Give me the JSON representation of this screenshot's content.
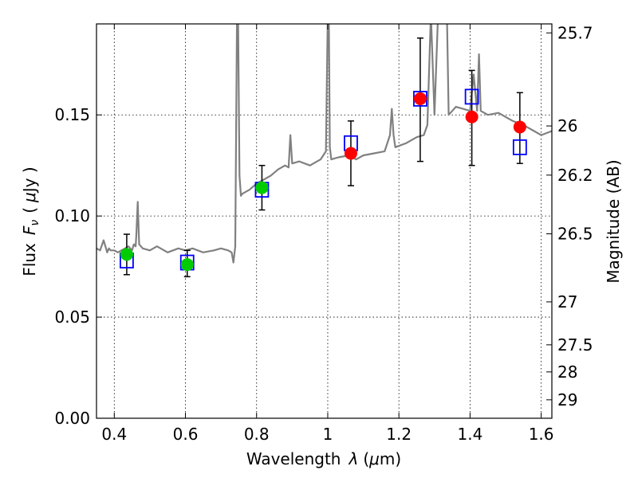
{
  "chart_data": {
    "type": "scatter",
    "xlabel_prefix": "Wavelength",
    "xlabel_symbol": "λ",
    "xlabel_unit_open": "(",
    "xlabel_unit_mu": "μ",
    "xlabel_unit_rest": "m)",
    "ylabel_prefix": "Flux",
    "ylabel_symbol": "F",
    "ylabel_subscript": "ν",
    "ylabel_unit_open": "(",
    "ylabel_unit_mu": "μ",
    "ylabel_unit_rest": "Jy )",
    "y2label": "Magnitude (AB)",
    "xlim": [
      0.35,
      1.63
    ],
    "ylim": [
      0.0,
      0.195
    ],
    "grid": true,
    "x_ticks": [
      {
        "value": 0.4,
        "label": "0.4"
      },
      {
        "value": 0.6,
        "label": "0.6"
      },
      {
        "value": 0.8,
        "label": "0.8"
      },
      {
        "value": 1.0,
        "label": "1"
      },
      {
        "value": 1.2,
        "label": "1.2"
      },
      {
        "value": 1.4,
        "label": "1.4"
      },
      {
        "value": 1.6,
        "label": "1.6"
      }
    ],
    "y_ticks": [
      {
        "value": 0.0,
        "label": "0.00"
      },
      {
        "value": 0.05,
        "label": "0.05"
      },
      {
        "value": 0.1,
        "label": "0.10"
      },
      {
        "value": 0.15,
        "label": "0.15"
      }
    ],
    "y2_ticks": [
      {
        "value": 25.7,
        "label": "25.7"
      },
      {
        "value": 26.0,
        "label": "26"
      },
      {
        "value": 26.2,
        "label": "26.2"
      },
      {
        "value": 26.5,
        "label": "26.5"
      },
      {
        "value": 27.0,
        "label": "27"
      },
      {
        "value": 27.5,
        "label": "27.5"
      },
      {
        "value": 28.0,
        "label": "28"
      },
      {
        "value": 29.0,
        "label": "29"
      }
    ],
    "series": [
      {
        "kind": "line",
        "color": "#808080",
        "x": [
          0.35,
          0.36,
          0.37,
          0.375,
          0.38,
          0.385,
          0.39,
          0.4,
          0.41,
          0.42,
          0.43,
          0.44,
          0.45,
          0.455,
          0.46,
          0.462,
          0.466,
          0.47,
          0.48,
          0.5,
          0.52,
          0.55,
          0.58,
          0.6,
          0.62,
          0.65,
          0.68,
          0.7,
          0.72,
          0.73,
          0.735,
          0.74,
          0.745,
          0.748,
          0.752,
          0.756,
          0.76,
          0.78,
          0.8,
          0.82,
          0.84,
          0.86,
          0.88,
          0.89,
          0.895,
          0.9,
          0.92,
          0.95,
          0.98,
          0.995,
          1.0,
          1.003,
          1.006,
          1.01,
          1.03,
          1.06,
          1.08,
          1.1,
          1.13,
          1.16,
          1.175,
          1.18,
          1.185,
          1.19,
          1.22,
          1.25,
          1.27,
          1.28,
          1.29,
          1.3,
          1.31,
          1.32,
          1.33,
          1.335,
          1.34,
          1.35,
          1.36,
          1.38,
          1.4,
          1.41,
          1.42,
          1.425,
          1.43,
          1.45,
          1.48,
          1.5,
          1.52,
          1.55,
          1.58,
          1.6,
          1.63
        ],
        "y": [
          0.084,
          0.083,
          0.088,
          0.085,
          0.082,
          0.084,
          0.083,
          0.083,
          0.082,
          0.083,
          0.084,
          0.085,
          0.083,
          0.086,
          0.085,
          0.091,
          0.107,
          0.086,
          0.084,
          0.083,
          0.085,
          0.082,
          0.084,
          0.083,
          0.084,
          0.082,
          0.083,
          0.084,
          0.083,
          0.082,
          0.077,
          0.085,
          0.2,
          0.2,
          0.12,
          0.11,
          0.111,
          0.113,
          0.116,
          0.118,
          0.12,
          0.123,
          0.125,
          0.124,
          0.14,
          0.126,
          0.127,
          0.125,
          0.128,
          0.132,
          0.2,
          0.2,
          0.134,
          0.128,
          0.129,
          0.13,
          0.128,
          0.13,
          0.131,
          0.132,
          0.14,
          0.153,
          0.14,
          0.134,
          0.136,
          0.139,
          0.14,
          0.145,
          0.2,
          0.15,
          0.2,
          0.2,
          0.2,
          0.2,
          0.15,
          0.152,
          0.154,
          0.153,
          0.152,
          0.17,
          0.152,
          0.18,
          0.152,
          0.15,
          0.151,
          0.149,
          0.147,
          0.145,
          0.142,
          0.14,
          0.142
        ]
      },
      {
        "kind": "open-square",
        "color": "#0000ff",
        "x": [
          0.435,
          0.605,
          0.815,
          1.065,
          1.26,
          1.405,
          1.54
        ],
        "y": [
          0.078,
          0.077,
          0.113,
          0.136,
          0.158,
          0.159,
          0.134
        ]
      },
      {
        "kind": "filled-circle",
        "color": "#00cc00",
        "x": [
          0.435,
          0.605,
          0.815
        ],
        "y": [
          0.081,
          0.076,
          0.114
        ]
      },
      {
        "kind": "filled-circle",
        "color": "#ff0000",
        "x": [
          1.065,
          1.26,
          1.405,
          1.54
        ],
        "y": [
          0.131,
          0.158,
          0.149,
          0.144
        ]
      },
      {
        "kind": "errorbar",
        "color": "#000000",
        "x": [
          0.435,
          0.605,
          0.815,
          1.065,
          1.26,
          1.405,
          1.54
        ],
        "ylow": [
          0.071,
          0.07,
          0.103,
          0.115,
          0.127,
          0.125,
          0.126
        ],
        "yhigh": [
          0.091,
          0.083,
          0.125,
          0.147,
          0.188,
          0.172,
          0.161
        ]
      }
    ]
  }
}
